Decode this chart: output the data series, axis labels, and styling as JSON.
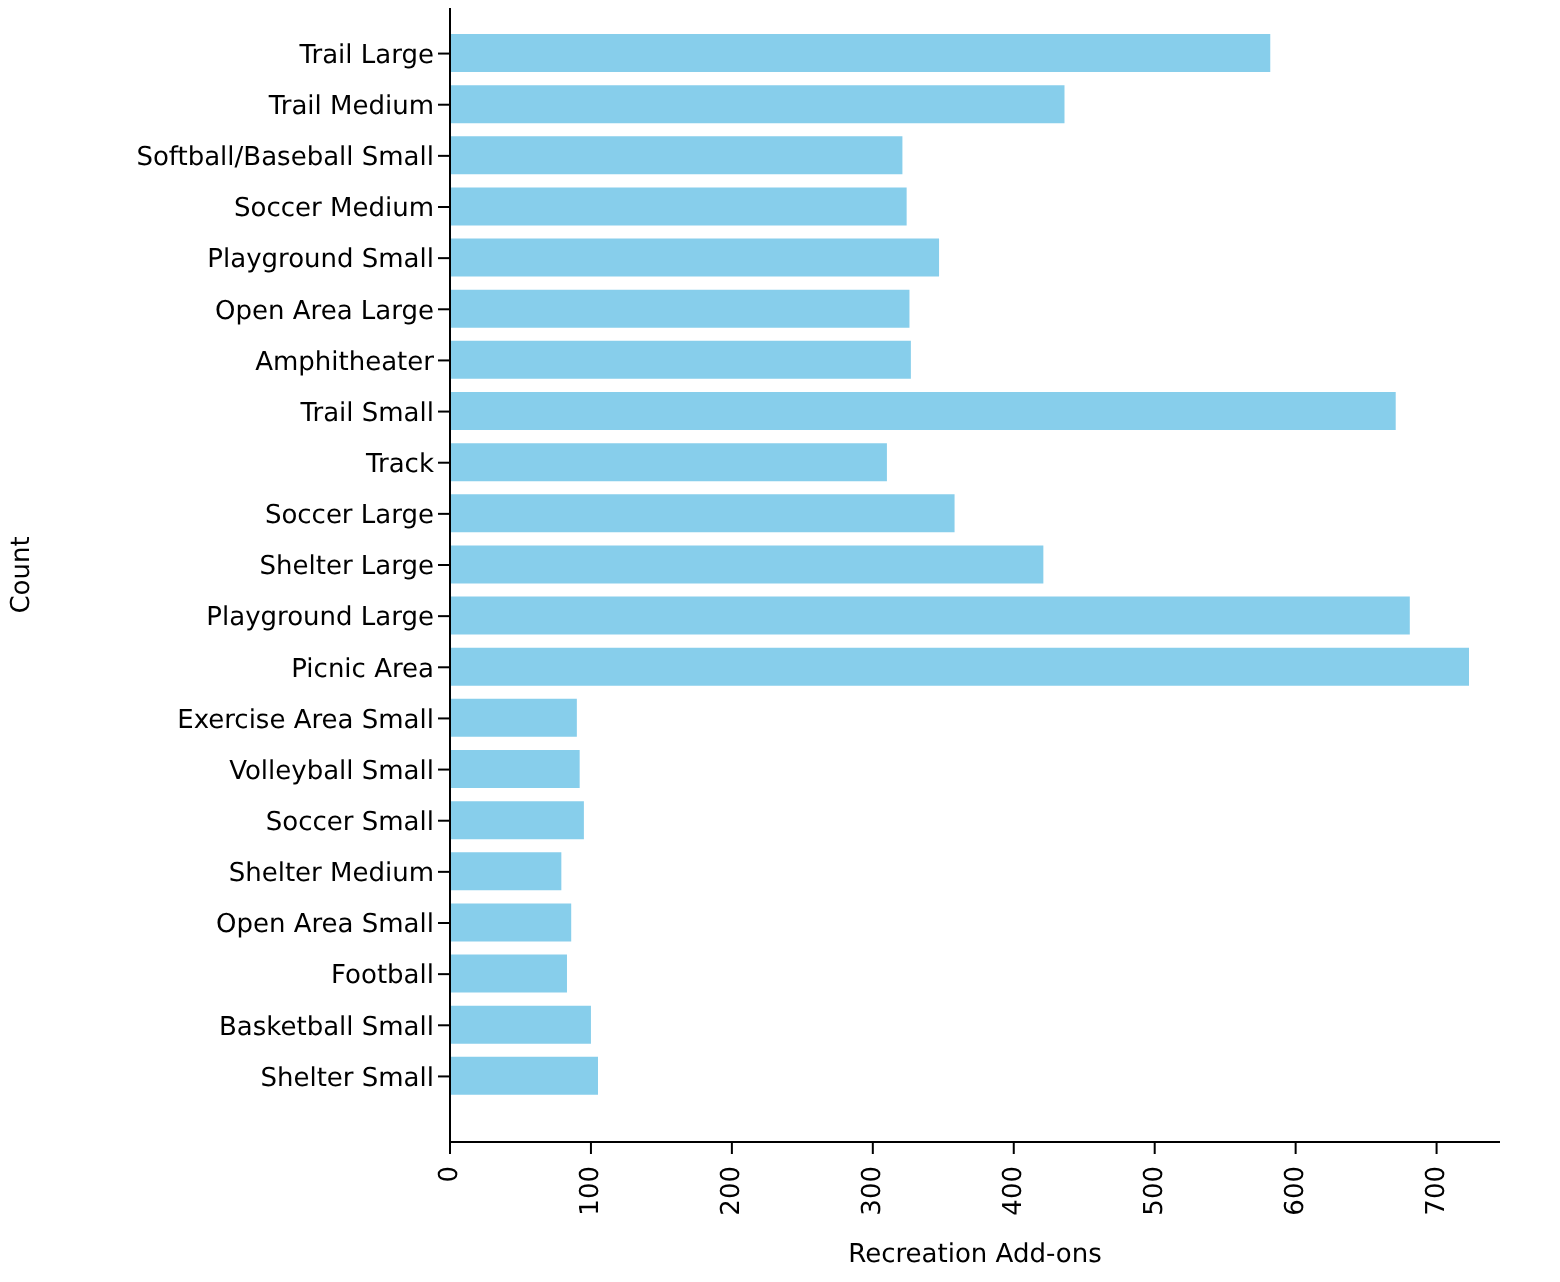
{
  "chart_data": {
    "type": "bar",
    "orientation": "horizontal",
    "xlabel": "Recreation Add-ons",
    "ylabel": "Count",
    "categories": [
      "Trail Large",
      "Trail Medium",
      "Softball/Baseball Small",
      "Soccer Medium",
      "Playground Small",
      "Open Area Large",
      "Amphitheater",
      "Trail Small",
      "Track",
      "Soccer Large",
      "Shelter Large",
      "Playground Large",
      "Picnic Area",
      "Exercise Area Small",
      "Volleyball Small",
      "Soccer Small",
      "Shelter Medium",
      "Open Area Small",
      "Football",
      "Basketball Small",
      "Shelter Small"
    ],
    "values": [
      582,
      436,
      321,
      324,
      347,
      326,
      327,
      671,
      310,
      358,
      421,
      681,
      723,
      90,
      92,
      95,
      79,
      86,
      83,
      100,
      105
    ],
    "color": "#87ceeb",
    "xlim": [
      0,
      745
    ],
    "xticks": [
      0,
      100,
      200,
      300,
      400,
      500,
      600,
      700
    ],
    "grid": false
  }
}
